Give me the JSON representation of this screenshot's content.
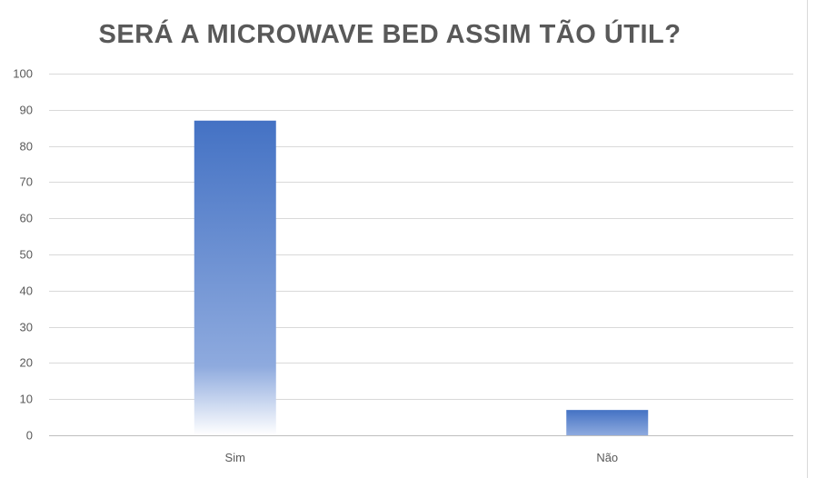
{
  "chart_data": {
    "type": "bar",
    "title": "SERÁ A MICROWAVE BED ASSIM TÃO ÚTIL?",
    "categories": [
      "Sim",
      "Não"
    ],
    "values": [
      87,
      7
    ],
    "ylim": [
      0,
      100
    ],
    "yticks": [
      0,
      10,
      20,
      30,
      40,
      50,
      60,
      70,
      80,
      90,
      100
    ],
    "grid": true,
    "legend": "none",
    "bar_color": "#4472c4",
    "bar_fill": "gradient-fade-to-white"
  }
}
